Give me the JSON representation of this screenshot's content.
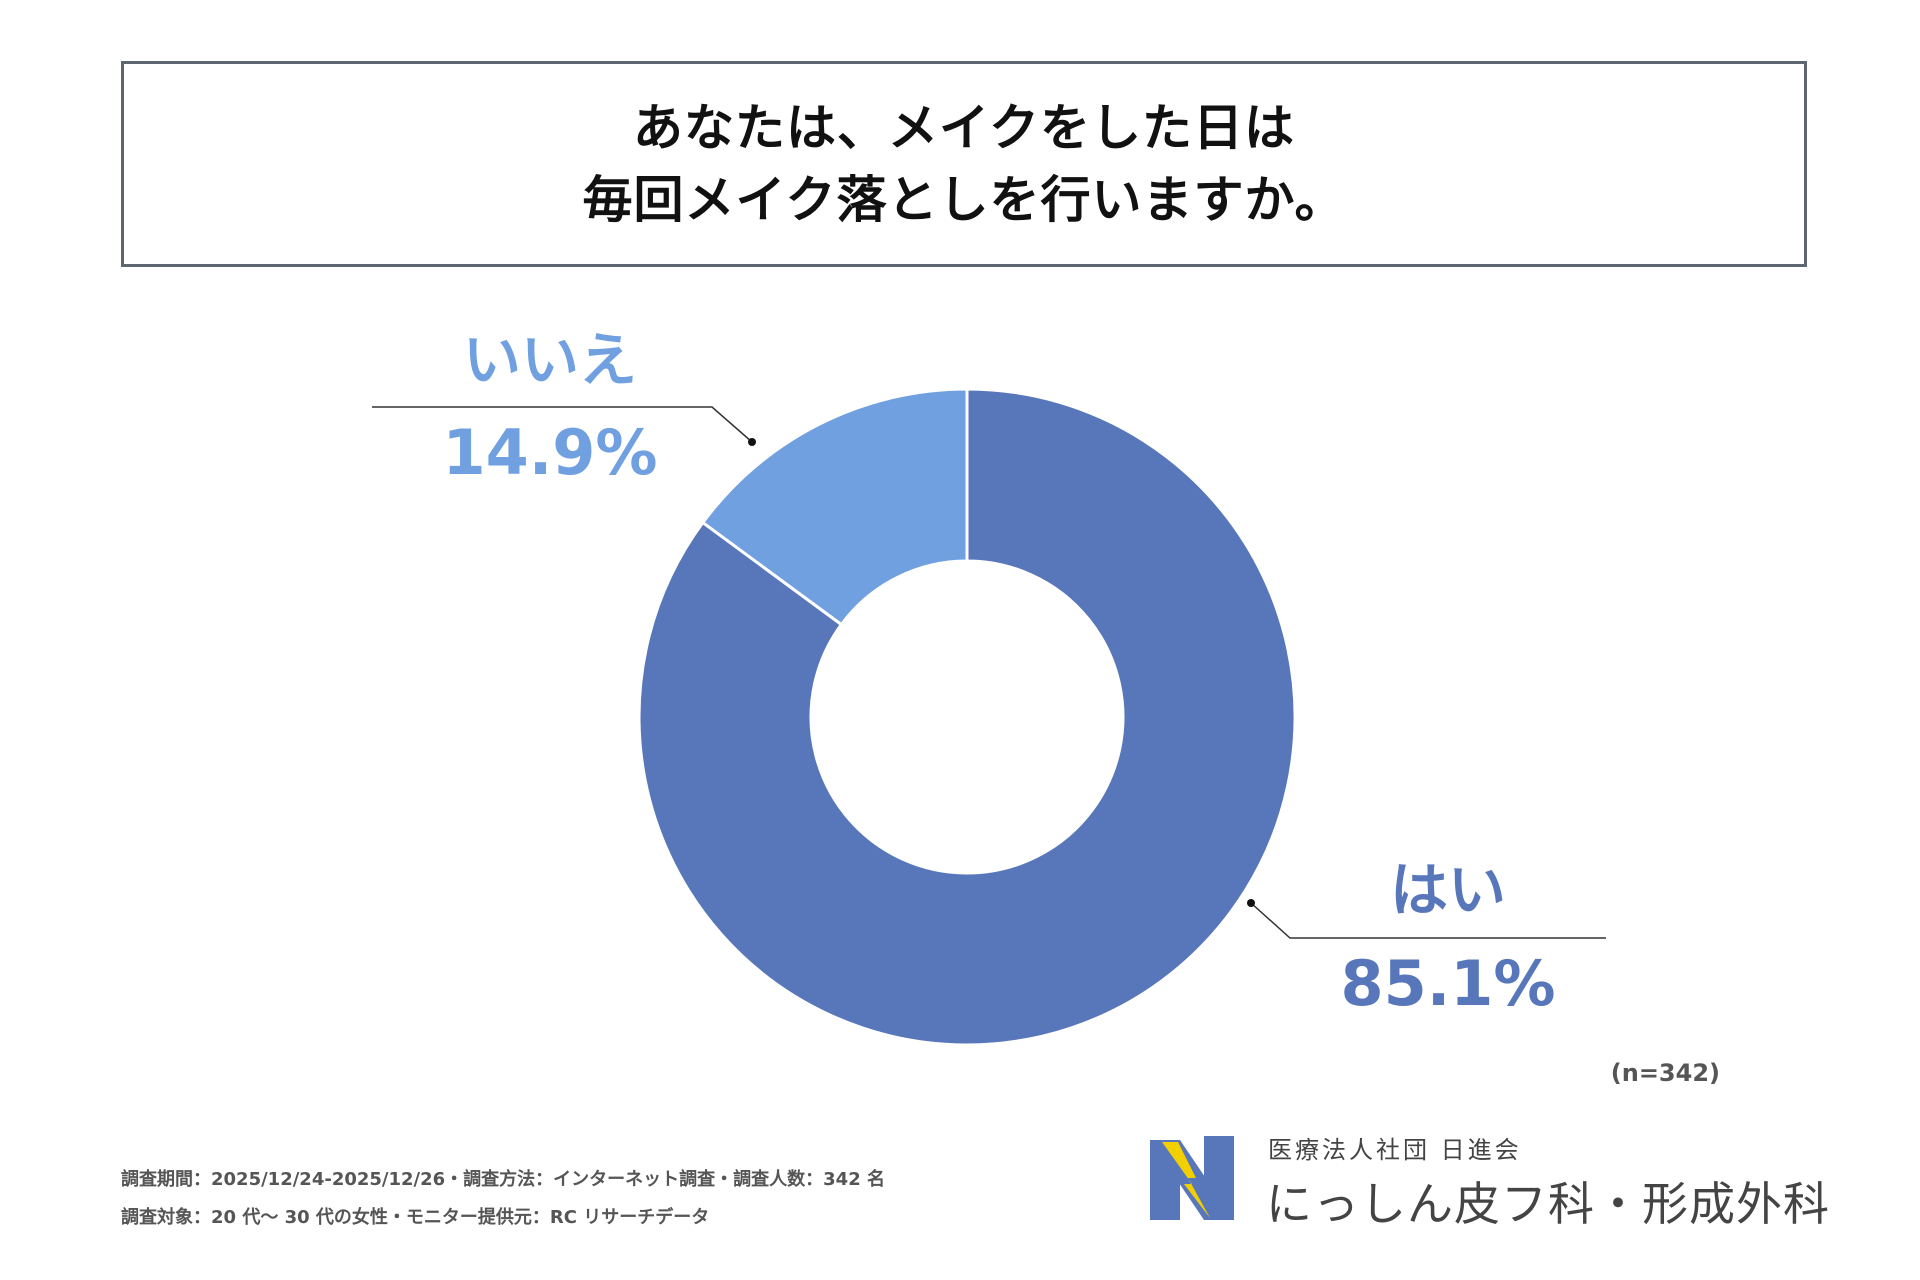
{
  "title": {
    "line1": "あなたは、メイクをした日は",
    "line2": "毎回メイク落としを行いますか。"
  },
  "chart_data": {
    "type": "pie",
    "donut": true,
    "title": "あなたは、メイクをした日は毎回メイク落としを行いますか。",
    "slices": [
      {
        "label": "はい",
        "value": 85.1,
        "value_label": "85.1%",
        "color": "#5877bb"
      },
      {
        "label": "いいえ",
        "value": 14.9,
        "value_label": "14.9%",
        "color": "#70a0e0"
      }
    ],
    "start": "12 o'clock, clockwise"
  },
  "sample_size": "(n=342)",
  "footnotes": {
    "line1": "調査期間：2025/12/24-2025/12/26・調査方法：インターネット調査・調査人数：342 名",
    "line2": "調査対象：20 代～ 30 代の女性・モニター提供元：RC リサーチデータ"
  },
  "logo": {
    "org": "医療法人社団 日進会",
    "clinic": "にっしん皮フ科・形成外科",
    "colors": {
      "blue": "#5877bb",
      "yellow": "#f2d000"
    }
  }
}
